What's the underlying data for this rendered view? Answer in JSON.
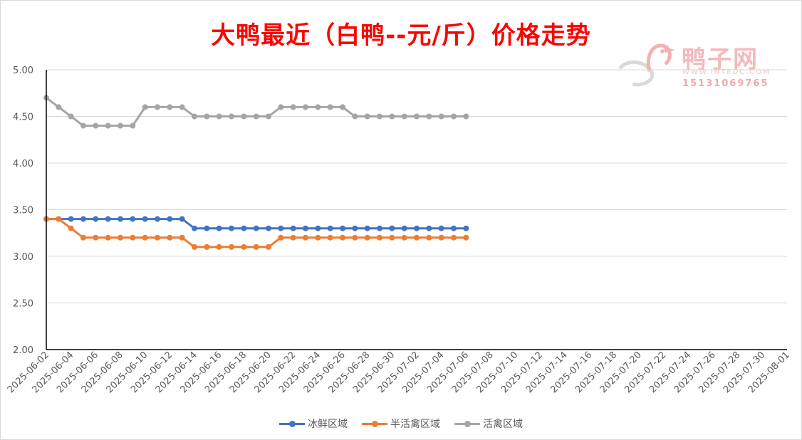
{
  "title": "大鸭最近（白鸭--元/斤）价格走势",
  "watermark": {
    "brand": "鸭子网",
    "url": "WWW.INTEDC.COM",
    "phone": "15131069765"
  },
  "chart_data": {
    "type": "line",
    "title": "大鸭最近（白鸭--元/斤）价格走势",
    "ylim": [
      2.0,
      5.0
    ],
    "y_ticks": [
      "2.00",
      "2.50",
      "3.00",
      "3.50",
      "4.00",
      "4.50",
      "5.00"
    ],
    "x_tick_labels": [
      "2025-06-02",
      "2025-06-04",
      "2025-06-06",
      "2025-06-08",
      "2025-06-10",
      "2025-06-12",
      "2025-06-14",
      "2025-06-16",
      "2025-06-18",
      "2025-06-20",
      "2025-06-22",
      "2025-06-24",
      "2025-06-26",
      "2025-06-28",
      "2025-06-30",
      "2025-07-02",
      "2025-07-04",
      "2025-07-06",
      "2025-07-08",
      "2025-07-10",
      "2025-07-12",
      "2025-07-14",
      "2025-07-16",
      "2025-07-18",
      "2025-07-20",
      "2025-07-22",
      "2025-07-24",
      "2025-07-26",
      "2025-07-28",
      "2025-07-30",
      "2025-08-01"
    ],
    "x_range": [
      "2025-06-02",
      "2025-08-01"
    ],
    "grid": true,
    "legend_position": "bottom",
    "series": [
      {
        "name": "冰鲜区域",
        "color": "#4472c4",
        "dates": [
          "2025-06-02",
          "2025-06-03",
          "2025-06-04",
          "2025-06-05",
          "2025-06-06",
          "2025-06-07",
          "2025-06-08",
          "2025-06-09",
          "2025-06-10",
          "2025-06-11",
          "2025-06-12",
          "2025-06-13",
          "2025-06-14",
          "2025-06-15",
          "2025-06-16",
          "2025-06-17",
          "2025-06-18",
          "2025-06-19",
          "2025-06-20",
          "2025-06-21",
          "2025-06-22",
          "2025-06-23",
          "2025-06-24",
          "2025-06-25",
          "2025-06-26",
          "2025-06-27",
          "2025-06-28",
          "2025-06-29",
          "2025-06-30",
          "2025-07-01",
          "2025-07-02",
          "2025-07-03",
          "2025-07-04",
          "2025-07-05",
          "2025-07-06"
        ],
        "values": [
          3.4,
          3.4,
          3.4,
          3.4,
          3.4,
          3.4,
          3.4,
          3.4,
          3.4,
          3.4,
          3.4,
          3.4,
          3.3,
          3.3,
          3.3,
          3.3,
          3.3,
          3.3,
          3.3,
          3.3,
          3.3,
          3.3,
          3.3,
          3.3,
          3.3,
          3.3,
          3.3,
          3.3,
          3.3,
          3.3,
          3.3,
          3.3,
          3.3,
          3.3,
          3.3
        ]
      },
      {
        "name": "半活禽区域",
        "color": "#ed7d31",
        "dates": [
          "2025-06-02",
          "2025-06-03",
          "2025-06-04",
          "2025-06-05",
          "2025-06-06",
          "2025-06-07",
          "2025-06-08",
          "2025-06-09",
          "2025-06-10",
          "2025-06-11",
          "2025-06-12",
          "2025-06-13",
          "2025-06-14",
          "2025-06-15",
          "2025-06-16",
          "2025-06-17",
          "2025-06-18",
          "2025-06-19",
          "2025-06-20",
          "2025-06-21",
          "2025-06-22",
          "2025-06-23",
          "2025-06-24",
          "2025-06-25",
          "2025-06-26",
          "2025-06-27",
          "2025-06-28",
          "2025-06-29",
          "2025-06-30",
          "2025-07-01",
          "2025-07-02",
          "2025-07-03",
          "2025-07-04",
          "2025-07-05",
          "2025-07-06"
        ],
        "values": [
          3.4,
          3.4,
          3.3,
          3.2,
          3.2,
          3.2,
          3.2,
          3.2,
          3.2,
          3.2,
          3.2,
          3.2,
          3.1,
          3.1,
          3.1,
          3.1,
          3.1,
          3.1,
          3.1,
          3.2,
          3.2,
          3.2,
          3.2,
          3.2,
          3.2,
          3.2,
          3.2,
          3.2,
          3.2,
          3.2,
          3.2,
          3.2,
          3.2,
          3.2,
          3.2
        ]
      },
      {
        "name": "活禽区域",
        "color": "#a5a5a5",
        "dates": [
          "2025-06-02",
          "2025-06-03",
          "2025-06-04",
          "2025-06-05",
          "2025-06-06",
          "2025-06-07",
          "2025-06-08",
          "2025-06-09",
          "2025-06-10",
          "2025-06-11",
          "2025-06-12",
          "2025-06-13",
          "2025-06-14",
          "2025-06-15",
          "2025-06-16",
          "2025-06-17",
          "2025-06-18",
          "2025-06-19",
          "2025-06-20",
          "2025-06-21",
          "2025-06-22",
          "2025-06-23",
          "2025-06-24",
          "2025-06-25",
          "2025-06-26",
          "2025-06-27",
          "2025-06-28",
          "2025-06-29",
          "2025-06-30",
          "2025-07-01",
          "2025-07-02",
          "2025-07-03",
          "2025-07-04",
          "2025-07-05",
          "2025-07-06"
        ],
        "values": [
          4.7,
          4.6,
          4.5,
          4.4,
          4.4,
          4.4,
          4.4,
          4.4,
          4.6,
          4.6,
          4.6,
          4.6,
          4.5,
          4.5,
          4.5,
          4.5,
          4.5,
          4.5,
          4.5,
          4.6,
          4.6,
          4.6,
          4.6,
          4.6,
          4.6,
          4.5,
          4.5,
          4.5,
          4.5,
          4.5,
          4.5,
          4.5,
          4.5,
          4.5,
          4.5
        ]
      }
    ]
  }
}
